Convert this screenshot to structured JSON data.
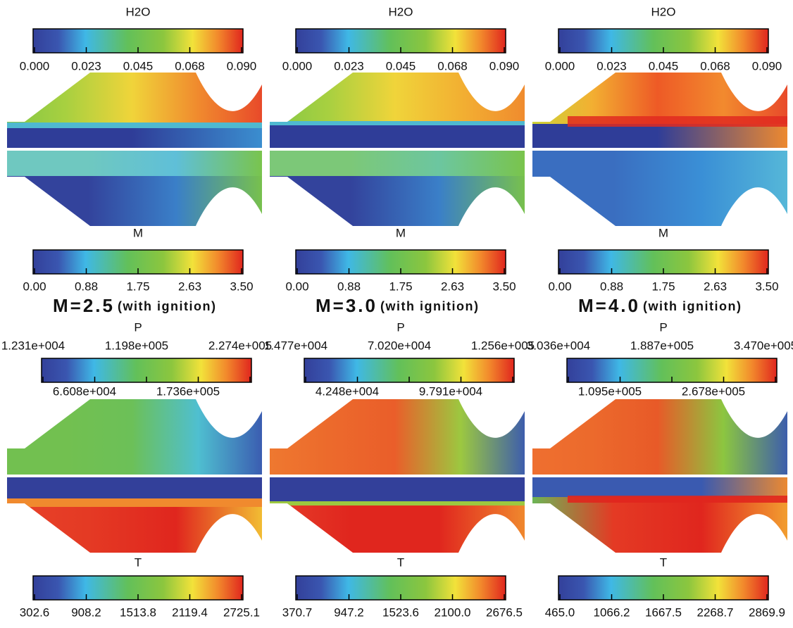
{
  "panels": [
    {
      "top_colorbar": {
        "title": "H2O",
        "ticks": [
          "0.000",
          "0.023",
          "0.045",
          "0.068",
          "0.090"
        ]
      },
      "bottom_colorbar": {
        "title": "M",
        "ticks": [
          "0.00",
          "0.88",
          "1.75",
          "2.63",
          "3.50"
        ]
      },
      "caption": {
        "mach": "M=2.5",
        "note": "(with ignition)"
      }
    },
    {
      "top_colorbar": {
        "title": "H2O",
        "ticks": [
          "0.000",
          "0.023",
          "0.045",
          "0.068",
          "0.090"
        ]
      },
      "bottom_colorbar": {
        "title": "M",
        "ticks": [
          "0.00",
          "0.88",
          "1.75",
          "2.63",
          "3.50"
        ]
      },
      "caption": {
        "mach": "M=3.0",
        "note": "(with ignition)"
      }
    },
    {
      "top_colorbar": {
        "title": "H2O",
        "ticks": [
          "0.000",
          "0.023",
          "0.045",
          "0.068",
          "0.090"
        ]
      },
      "bottom_colorbar": {
        "title": "M",
        "ticks": [
          "0.00",
          "0.88",
          "1.75",
          "2.63",
          "3.50"
        ]
      },
      "caption": {
        "mach": "M=4.0",
        "note": "(with ignition)"
      }
    },
    {
      "top_colorbar": {
        "title": "P",
        "ticks_above": [
          "1.231e+004",
          "1.198e+005",
          "2.274e+005"
        ],
        "ticks_below": [
          "6.608e+004",
          "1.736e+005"
        ]
      },
      "bottom_colorbar": {
        "title": "T",
        "ticks": [
          "302.6",
          "908.2",
          "1513.8",
          "2119.4",
          "2725.1"
        ]
      }
    },
    {
      "top_colorbar": {
        "title": "P",
        "ticks_above": [
          "1.477e+004",
          "7.020e+004",
          "1.256e+005"
        ],
        "ticks_below": [
          "4.248e+004",
          "9.791e+004"
        ]
      },
      "bottom_colorbar": {
        "title": "T",
        "ticks": [
          "370.7",
          "947.2",
          "1523.6",
          "2100.0",
          "2676.5"
        ]
      }
    },
    {
      "top_colorbar": {
        "title": "P",
        "ticks_above": [
          "3.036e+004",
          "1.887e+005",
          "3.470e+005"
        ],
        "ticks_below": [
          "1.095e+005",
          "2.678e+005"
        ]
      },
      "bottom_colorbar": {
        "title": "T",
        "ticks": [
          "465.0",
          "1066.2",
          "1667.5",
          "2268.7",
          "2869.9"
        ]
      }
    }
  ]
}
